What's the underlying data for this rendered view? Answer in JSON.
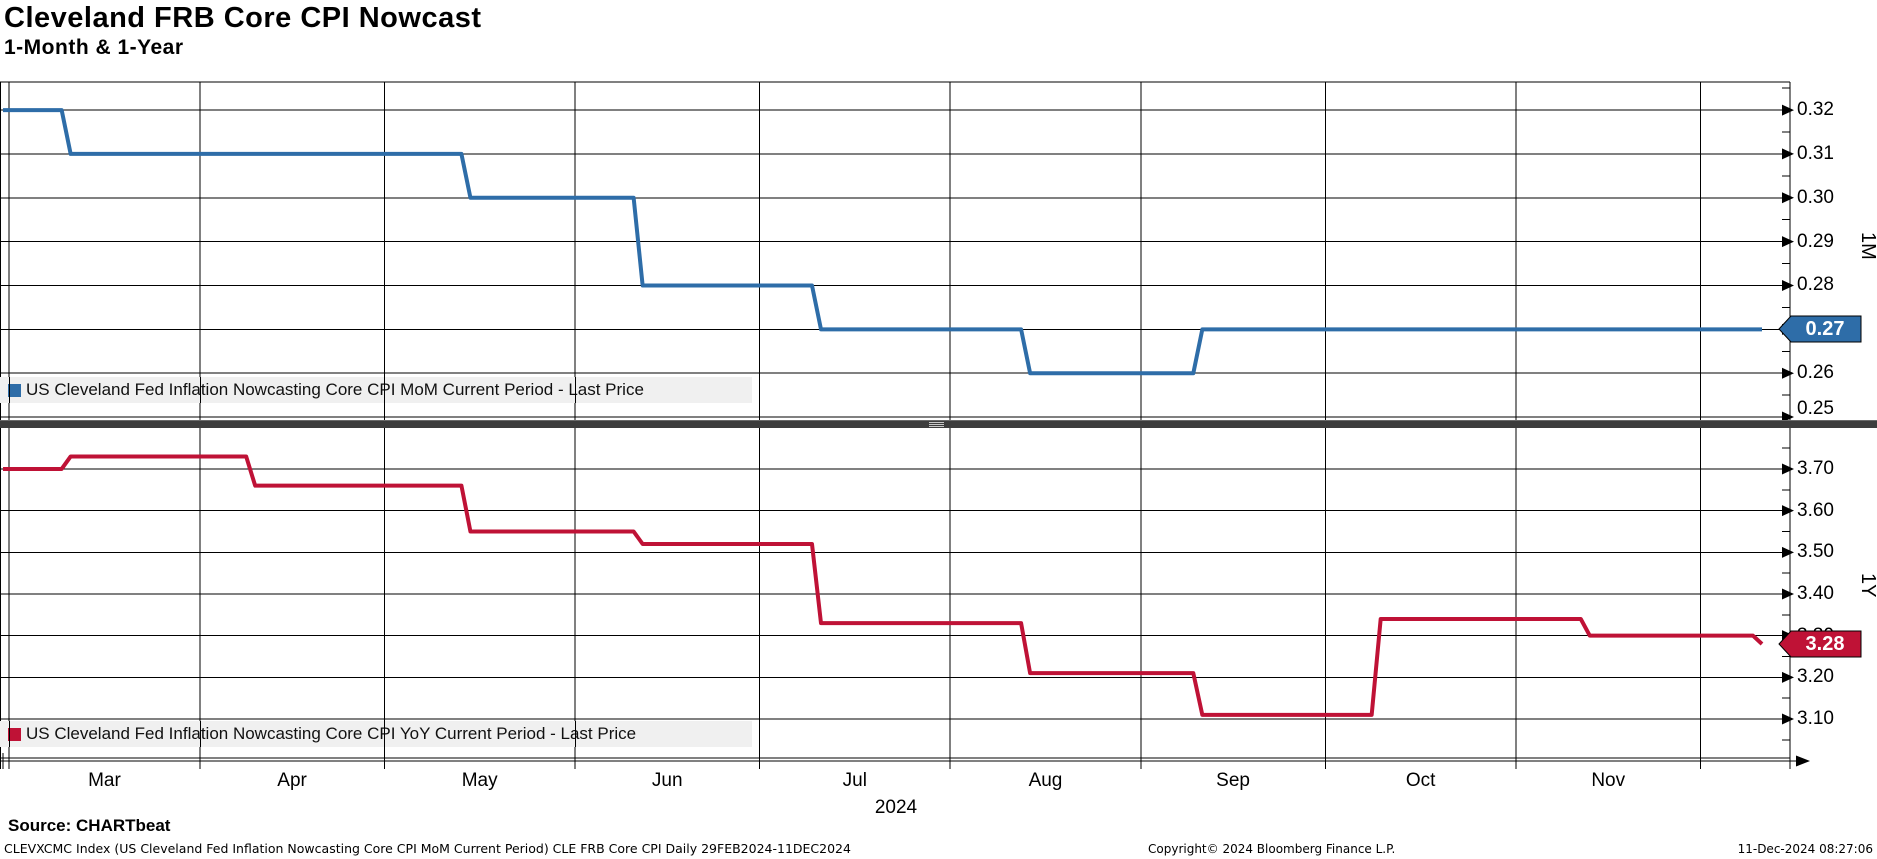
{
  "header": {
    "title": "Cleveland FRB Core CPI Nowcast",
    "subtitle": "1-Month & 1-Year"
  },
  "footer": {
    "source": "Source: CHARTbeat",
    "description": "CLEVXCMC Index (US Cleveland Fed Inflation Nowcasting Core CPI MoM Current Period) CLE FRB Core CPI  Daily 29FEB2024-11DEC2024",
    "copyright": "Copyright© 2024 Bloomberg Finance L.P.",
    "datetime": "11-Dec-2024 08:27:06"
  },
  "chart_data": {
    "type": "line",
    "style": "stepped",
    "x_start": "2024-02-29",
    "x_end": "2024-12-11",
    "grid": true,
    "x_axis": {
      "month_boundaries": [
        "2024-03-01",
        "2024-04-01",
        "2024-05-01",
        "2024-06-01",
        "2024-07-01",
        "2024-08-01",
        "2024-09-01",
        "2024-10-01",
        "2024-11-01",
        "2024-12-01"
      ],
      "month_labels": [
        "Mar",
        "Apr",
        "May",
        "Jun",
        "Jul",
        "Aug",
        "Sep",
        "Oct",
        "Nov"
      ],
      "year_label": "2024"
    },
    "panels": [
      {
        "id": "1M",
        "axis_label": "1M",
        "legend_label": "US Cleveland Fed Inflation Nowcasting Core CPI MoM Current Period - Last Price",
        "color": "#2e6da8",
        "last_price": "0.27",
        "ticks": [
          0.32,
          0.31,
          0.3,
          0.29,
          0.28,
          0.27,
          0.26,
          0.25
        ],
        "tick_labels": [
          "0.32",
          "0.31",
          "0.30",
          "0.29",
          "0.28",
          "0.27",
          "0.26",
          "0.25"
        ],
        "ylim": [
          0.2491,
          0.3264
        ],
        "steps": [
          [
            "2024-02-29",
            0.32
          ],
          [
            "2024-03-11",
            0.31
          ],
          [
            "2024-05-15",
            0.3
          ],
          [
            "2024-06-12",
            0.28
          ],
          [
            "2024-07-11",
            0.27
          ],
          [
            "2024-08-14",
            0.26
          ],
          [
            "2024-09-11",
            0.27
          ],
          [
            "2024-12-11",
            0.27
          ]
        ]
      },
      {
        "id": "1Y",
        "axis_label": "1Y",
        "legend_label": "US Cleveland Fed Inflation Nowcasting Core CPI YoY Current Period - Last Price",
        "color": "#bf1236",
        "last_price": "3.28",
        "ticks": [
          3.7,
          3.6,
          3.5,
          3.4,
          3.3,
          3.2,
          3.1
        ],
        "tick_labels": [
          "3.70",
          "3.60",
          "3.50",
          "3.40",
          "3.30",
          "3.20",
          "3.10"
        ],
        "ylim": [
          3.0065,
          3.8007
        ],
        "steps": [
          [
            "2024-02-29",
            3.7
          ],
          [
            "2024-03-11",
            3.73
          ],
          [
            "2024-04-10",
            3.66
          ],
          [
            "2024-05-15",
            3.55
          ],
          [
            "2024-06-12",
            3.52
          ],
          [
            "2024-07-11",
            3.33
          ],
          [
            "2024-08-14",
            3.21
          ],
          [
            "2024-09-11",
            3.11
          ],
          [
            "2024-10-10",
            3.34
          ],
          [
            "2024-11-13",
            3.3
          ],
          [
            "2024-12-11",
            3.28
          ]
        ]
      }
    ]
  }
}
